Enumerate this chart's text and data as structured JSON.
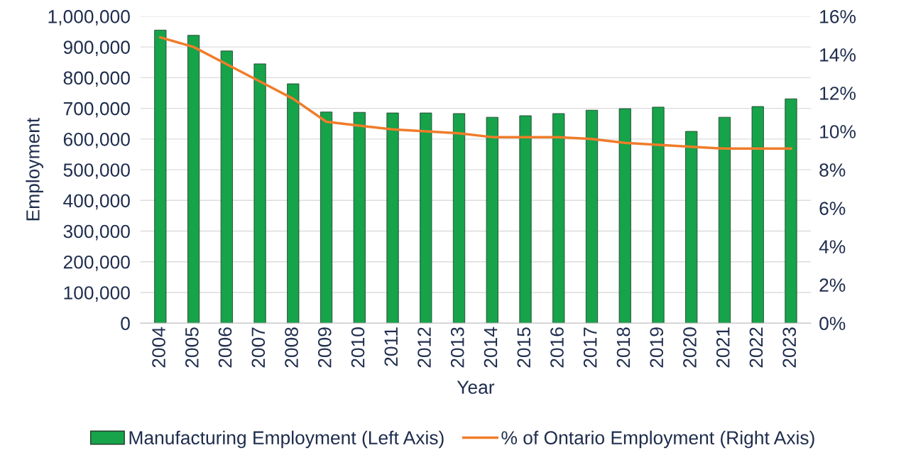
{
  "chart_data": {
    "type": "bar",
    "xlabel": "Year",
    "ylabel": "Employment",
    "categories": [
      "2004",
      "2005",
      "2006",
      "2007",
      "2008",
      "2009",
      "2010",
      "2011",
      "2012",
      "2013",
      "2014",
      "2015",
      "2016",
      "2017",
      "2018",
      "2019",
      "2020",
      "2021",
      "2022",
      "2023"
    ],
    "series": [
      {
        "name": "Manufacturing Employment (Left Axis)",
        "color": "#16a34a",
        "values": [
          955000,
          938000,
          887000,
          845000,
          780000,
          688000,
          687000,
          685000,
          685000,
          683000,
          671000,
          676000,
          683000,
          694000,
          699000,
          704000,
          625000,
          671000,
          706000,
          731000
        ]
      },
      {
        "name": "% of Ontario Employment (Right Axis)",
        "color": "#f07c2a",
        "type": "line",
        "axis": "y2",
        "values": [
          14.9,
          14.4,
          13.5,
          12.6,
          11.7,
          10.5,
          10.3,
          10.1,
          10.0,
          9.9,
          9.7,
          9.7,
          9.7,
          9.6,
          9.4,
          9.3,
          9.2,
          9.1,
          9.1,
          9.1
        ]
      }
    ],
    "ylim": [
      0,
      1000000
    ],
    "yticks": [
      {
        "value": 0,
        "label": "0"
      },
      {
        "value": 100000,
        "label": "100,000"
      },
      {
        "value": 200000,
        "label": "200,000"
      },
      {
        "value": 300000,
        "label": "300,000"
      },
      {
        "value": 400000,
        "label": "400,000"
      },
      {
        "value": 500000,
        "label": "500,000"
      },
      {
        "value": 600000,
        "label": "600,000"
      },
      {
        "value": 700000,
        "label": "700,000"
      },
      {
        "value": 800000,
        "label": "800,000"
      },
      {
        "value": 900000,
        "label": "900,000"
      },
      {
        "value": 1000000,
        "label": "1,000,000"
      }
    ],
    "y2lim": [
      0,
      16
    ],
    "y2ticks": [
      {
        "value": 0,
        "label": "0%"
      },
      {
        "value": 2,
        "label": "2%"
      },
      {
        "value": 4,
        "label": "4%"
      },
      {
        "value": 6,
        "label": "6%"
      },
      {
        "value": 8,
        "label": "8%"
      },
      {
        "value": 10,
        "label": "10%"
      },
      {
        "value": 12,
        "label": "12%"
      },
      {
        "value": 14,
        "label": "14%"
      },
      {
        "value": 16,
        "label": "16%"
      }
    ],
    "grid": "y",
    "legend": "bottom",
    "marker": "none",
    "line_style": "solid"
  }
}
